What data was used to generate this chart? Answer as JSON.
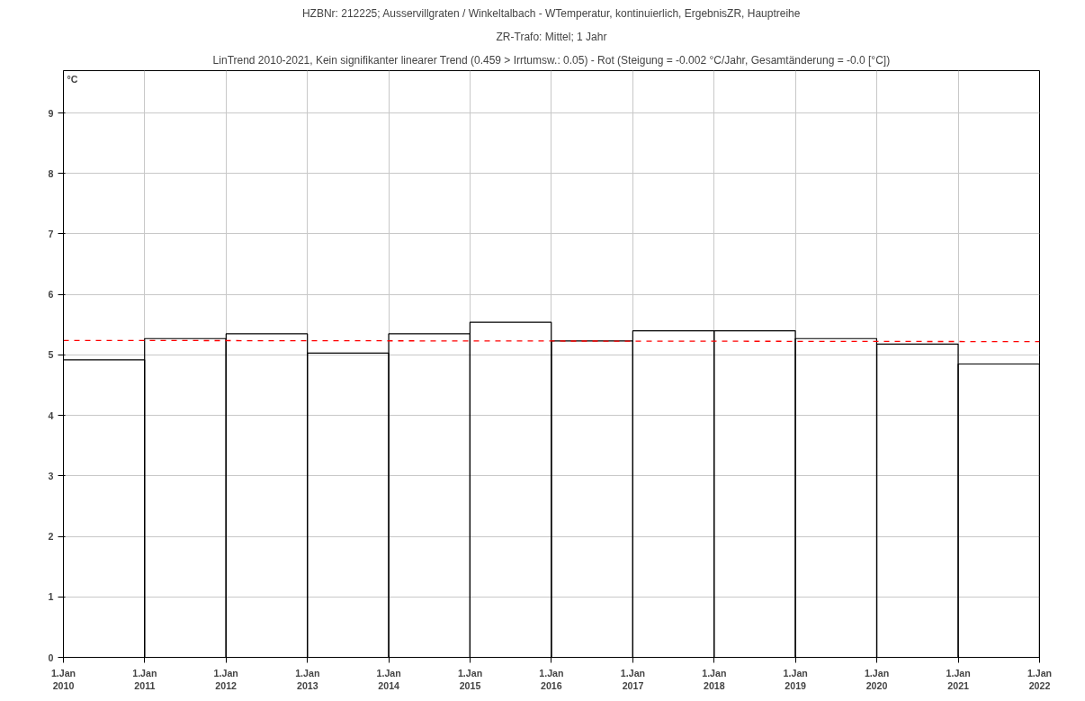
{
  "chart_data": {
    "type": "bar",
    "title": "HZBNr: 212225; Ausservillgraten / Winkeltalbach - WTemperatur, kontinuierlich, ErgebnisZR, Hauptreihe",
    "subtitle": "ZR-Trafo: Mittel; 1 Jahr",
    "annotations": [
      "LinTrend 2010-2021, Kein signifikanter linearer Trend (0.459 > Irrtumsw.: 0.05) - Rot (Steigung = -0.002 °C/Jahr, Gesamtänderung = -0.0 [°C])"
    ],
    "ylabel": "°C",
    "x": [
      "2010-07-02",
      "2011-07-02",
      "2012-07-02",
      "2013-07-02",
      "2014-07-02",
      "2015-07-02",
      "2016-07-02",
      "2017-07-02",
      "2018-07-02",
      "2019-07-02",
      "2020-07-02",
      "2021-07-02"
    ],
    "series": [
      {
        "color": "#000000",
        "values": [
          4.92,
          5.27,
          5.35,
          5.03,
          5.35,
          5.54,
          5.23,
          5.4,
          5.4,
          5.27,
          5.18,
          4.85
        ]
      },
      {
        "type": "line",
        "color": "#ff0000",
        "line_style": "dashed",
        "x": [
          "2010",
          "2022"
        ],
        "values": [
          5.24,
          5.22
        ]
      }
    ],
    "xlim": [
      "2010",
      "2022"
    ],
    "xticks": [
      {
        "value": "2010",
        "label": "1.Jan\n2010"
      },
      {
        "value": "2011",
        "label": "1.Jan\n2011"
      },
      {
        "value": "2012",
        "label": "1.Jan\n2012"
      },
      {
        "value": "2013",
        "label": "1.Jan\n2013"
      },
      {
        "value": "2014",
        "label": "1.Jan\n2014"
      },
      {
        "value": "2015",
        "label": "1.Jan\n2015"
      },
      {
        "value": "2016",
        "label": "1.Jan\n2016"
      },
      {
        "value": "2017",
        "label": "1.Jan\n2017"
      },
      {
        "value": "2018",
        "label": "1.Jan\n2018"
      },
      {
        "value": "2019",
        "label": "1.Jan\n2019"
      },
      {
        "value": "2020",
        "label": "1.Jan\n2020"
      },
      {
        "value": "2021",
        "label": "1.Jan\n2021"
      },
      {
        "value": "2022",
        "label": "1.Jan\n2022"
      }
    ],
    "ylim": [
      0,
      9.7
    ],
    "yticks": [
      0,
      1,
      2,
      3,
      4,
      5,
      6,
      7,
      8,
      9
    ],
    "grid": true
  }
}
